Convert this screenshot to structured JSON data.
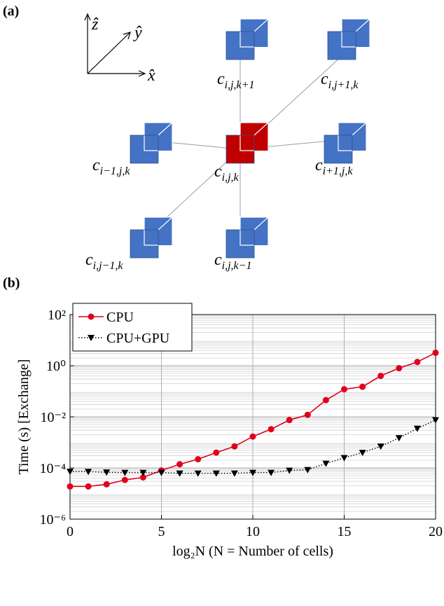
{
  "diagram": {
    "label": "(a)",
    "axes": {
      "z": "ẑ",
      "y": "ŷ",
      "x": "x̂"
    },
    "cells": [
      {
        "base": "c",
        "sub": "i,j,k+1"
      },
      {
        "base": "c",
        "sub": "i,j+1,k"
      },
      {
        "base": "c",
        "sub": "i−1,j,k"
      },
      {
        "base": "c",
        "sub": "i,j,k"
      },
      {
        "base": "c",
        "sub": "i+1,j,k"
      },
      {
        "base": "c",
        "sub": "i,j−1,k"
      },
      {
        "base": "c",
        "sub": "i,j,k−1"
      }
    ]
  },
  "chart_data": {
    "type": "line",
    "panel_label": "(b)",
    "xlabel": "log₂N (N = Number of cells)",
    "ylabel": "Time (s) [Exchange]",
    "x": [
      0,
      1,
      2,
      3,
      4,
      5,
      6,
      7,
      8,
      9,
      10,
      11,
      12,
      13,
      14,
      15,
      16,
      17,
      18,
      19,
      20
    ],
    "series": [
      {
        "name": "CPU",
        "color": "#e0001b",
        "linestyle": "solid",
        "marker": "circle",
        "values": [
          1.9e-05,
          1.9e-05,
          2.3e-05,
          3.4e-05,
          4.3e-05,
          8e-05,
          0.00014,
          0.00022,
          0.0004,
          0.0007,
          0.0017,
          0.0033,
          0.0075,
          0.012,
          0.045,
          0.12,
          0.15,
          0.4,
          0.8,
          1.4,
          3.2
        ]
      },
      {
        "name": "CPU+GPU",
        "color": "#000000",
        "linestyle": "dotted",
        "marker": "triangle-down",
        "values": [
          7.3e-05,
          7.2e-05,
          6.8e-05,
          6.6e-05,
          6.6e-05,
          6.6e-05,
          6.2e-05,
          6.2e-05,
          6.2e-05,
          6.2e-05,
          6.6e-05,
          6.6e-05,
          8e-05,
          8.5e-05,
          0.00015,
          0.00025,
          0.0004,
          0.0007,
          0.0015,
          0.0035,
          0.0075
        ]
      }
    ],
    "xlim": [
      0,
      20
    ],
    "xticks": [
      0,
      5,
      10,
      15,
      20
    ],
    "ylim": [
      1e-06,
      100
    ],
    "yscale": "log",
    "yticks": [
      {
        "value": 1e-06,
        "label": "10⁻⁶"
      },
      {
        "value": 0.0001,
        "label": "10⁻⁴"
      },
      {
        "value": 0.01,
        "label": "10⁻²"
      },
      {
        "value": 1,
        "label": "10⁰"
      },
      {
        "value": 100,
        "label": "10²"
      }
    ],
    "grid": true,
    "minor_grid": true,
    "legend": "upper left"
  }
}
